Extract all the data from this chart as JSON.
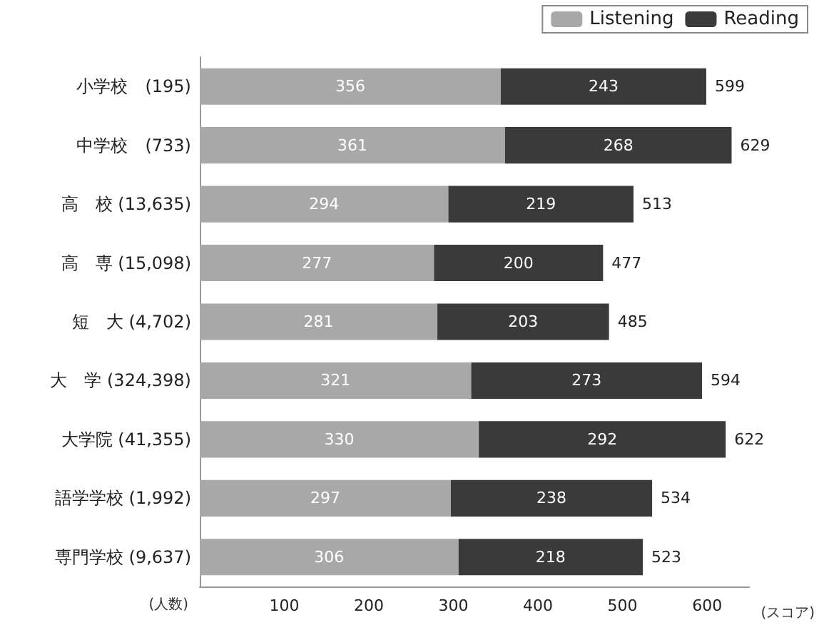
{
  "chart_data": {
    "type": "bar",
    "orientation": "horizontal",
    "stacked": true,
    "xlabel": "(スコア)",
    "ylabel": "(人数)",
    "categories": [
      "小学校　(195)",
      "中学校　(733)",
      "高　校 (13,635)",
      "高　専 (15,098)",
      "短　大 (4,702)",
      "大　学 (324,398)",
      "大学院 (41,355)",
      "語学学校 (1,992)",
      "専門学校 (9,637)"
    ],
    "series": [
      {
        "name": "Listening",
        "color": "#a8a8a8",
        "values": [
          356,
          361,
          294,
          277,
          281,
          321,
          330,
          297,
          306
        ]
      },
      {
        "name": "Reading",
        "color": "#3a3a3a",
        "values": [
          243,
          268,
          219,
          200,
          203,
          273,
          292,
          238,
          218
        ]
      }
    ],
    "totals": [
      "599",
      "629",
      "513",
      "477",
      "485",
      "594",
      "622",
      "534",
      "523"
    ],
    "data_labels": true,
    "xlim": [
      0,
      650
    ],
    "xticks": [
      100,
      200,
      300,
      400,
      500,
      600
    ],
    "grid": false,
    "legend": "top right"
  }
}
